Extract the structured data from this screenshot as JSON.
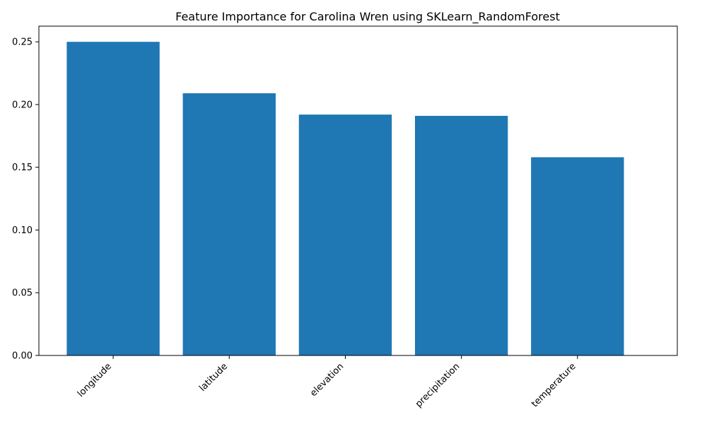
{
  "chart_data": {
    "type": "bar",
    "title": "Feature Importance for Carolina Wren using SKLearn_RandomForest",
    "xlabel": "",
    "ylabel": "",
    "categories": [
      "longitude",
      "latitude",
      "elevation",
      "precipitation",
      "temperature"
    ],
    "values": [
      0.25,
      0.209,
      0.192,
      0.191,
      0.158
    ],
    "ylim": [
      0,
      0.2625
    ],
    "yticks": [
      "0.00",
      "0.05",
      "0.10",
      "0.15",
      "0.20",
      "0.25"
    ],
    "ytick_values": [
      0,
      0.05,
      0.1,
      0.15,
      0.2,
      0.25
    ],
    "grid": false,
    "legend": "none",
    "bar_color": "#1f77b4",
    "xtick_rotation_deg": 45
  }
}
